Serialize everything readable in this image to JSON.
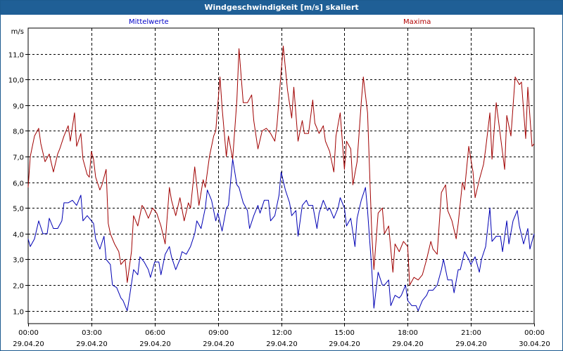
{
  "window": {
    "title": "Windgeschwindigkeit [m/s] skaliert"
  },
  "legend": {
    "mean": "Mittelwerte",
    "max": "Maxima"
  },
  "colors": {
    "mean": "#0000b4",
    "max": "#a00000",
    "titlebar": "#1f5f96",
    "grid": "#000000"
  },
  "chart_data": {
    "type": "line",
    "title": "Windgeschwindigkeit [m/s] skaliert",
    "ylabel": "m/s",
    "xlabel": "",
    "ylim": [
      0.5,
      12.0
    ],
    "yticks": [
      "1,0",
      "2,0",
      "3,0",
      "4,0",
      "5,0",
      "6,0",
      "7,0",
      "8,0",
      "9,0",
      "10,0",
      "11,0"
    ],
    "xlim_hours": [
      0,
      24
    ],
    "xticks": [
      {
        "time": "00:00",
        "date": "29.04.20"
      },
      {
        "time": "03:00",
        "date": "29.04.20"
      },
      {
        "time": "06:00",
        "date": "29.04.20"
      },
      {
        "time": "09:00",
        "date": "29.04.20"
      },
      {
        "time": "12:00",
        "date": "29.04.20"
      },
      {
        "time": "15:00",
        "date": "29.04.20"
      },
      {
        "time": "18:00",
        "date": "29.04.20"
      },
      {
        "time": "21:00",
        "date": "29.04.20"
      },
      {
        "time": "00:00",
        "date": "30.04.20"
      }
    ],
    "grid": true,
    "series": [
      {
        "name": "Mittelwerte",
        "values": [
          [
            0.0,
            3.8
          ],
          [
            0.1,
            3.5
          ],
          [
            0.3,
            3.8
          ],
          [
            0.5,
            4.5
          ],
          [
            0.7,
            4.0
          ],
          [
            0.9,
            4.0
          ],
          [
            1.0,
            4.6
          ],
          [
            1.2,
            4.2
          ],
          [
            1.4,
            4.2
          ],
          [
            1.6,
            4.5
          ],
          [
            1.7,
            5.2
          ],
          [
            1.9,
            5.2
          ],
          [
            2.1,
            5.3
          ],
          [
            2.3,
            5.1
          ],
          [
            2.5,
            5.5
          ],
          [
            2.6,
            4.5
          ],
          [
            2.8,
            4.7
          ],
          [
            3.0,
            4.5
          ],
          [
            3.1,
            4.4
          ],
          [
            3.2,
            3.8
          ],
          [
            3.4,
            3.4
          ],
          [
            3.6,
            3.9
          ],
          [
            3.7,
            3.0
          ],
          [
            3.9,
            2.8
          ],
          [
            4.0,
            2.0
          ],
          [
            4.2,
            1.9
          ],
          [
            4.4,
            1.5
          ],
          [
            4.5,
            1.4
          ],
          [
            4.7,
            1.0
          ],
          [
            4.8,
            1.5
          ],
          [
            5.0,
            2.6
          ],
          [
            5.2,
            2.4
          ],
          [
            5.3,
            3.1
          ],
          [
            5.5,
            2.9
          ],
          [
            5.7,
            2.6
          ],
          [
            5.8,
            2.3
          ],
          [
            6.0,
            2.9
          ],
          [
            6.2,
            2.9
          ],
          [
            6.3,
            2.4
          ],
          [
            6.5,
            3.2
          ],
          [
            6.7,
            3.5
          ],
          [
            6.8,
            3.1
          ],
          [
            7.0,
            2.6
          ],
          [
            7.2,
            3.0
          ],
          [
            7.3,
            3.3
          ],
          [
            7.5,
            3.2
          ],
          [
            7.7,
            3.5
          ],
          [
            7.9,
            4.0
          ],
          [
            8.0,
            4.5
          ],
          [
            8.2,
            4.2
          ],
          [
            8.4,
            5.0
          ],
          [
            8.5,
            5.7
          ],
          [
            8.7,
            5.3
          ],
          [
            8.9,
            4.5
          ],
          [
            9.0,
            4.8
          ],
          [
            9.2,
            4.1
          ],
          [
            9.4,
            5.0
          ],
          [
            9.5,
            5.1
          ],
          [
            9.7,
            6.9
          ],
          [
            9.9,
            5.9
          ],
          [
            10.0,
            5.8
          ],
          [
            10.2,
            5.2
          ],
          [
            10.4,
            4.9
          ],
          [
            10.5,
            4.2
          ],
          [
            10.7,
            4.7
          ],
          [
            10.9,
            5.1
          ],
          [
            11.0,
            4.8
          ],
          [
            11.2,
            5.3
          ],
          [
            11.4,
            5.3
          ],
          [
            11.5,
            4.5
          ],
          [
            11.7,
            4.7
          ],
          [
            11.9,
            5.5
          ],
          [
            12.0,
            6.4
          ],
          [
            12.2,
            5.7
          ],
          [
            12.4,
            5.2
          ],
          [
            12.5,
            4.7
          ],
          [
            12.7,
            4.9
          ],
          [
            12.8,
            3.9
          ],
          [
            13.0,
            5.1
          ],
          [
            13.2,
            5.3
          ],
          [
            13.3,
            5.1
          ],
          [
            13.5,
            5.1
          ],
          [
            13.7,
            4.2
          ],
          [
            13.8,
            4.8
          ],
          [
            14.0,
            5.3
          ],
          [
            14.2,
            4.9
          ],
          [
            14.3,
            5.0
          ],
          [
            14.5,
            4.6
          ],
          [
            14.7,
            5.0
          ],
          [
            14.8,
            5.4
          ],
          [
            15.0,
            5.0
          ],
          [
            15.1,
            4.3
          ],
          [
            15.3,
            4.6
          ],
          [
            15.5,
            3.5
          ],
          [
            15.6,
            4.6
          ],
          [
            15.8,
            5.3
          ],
          [
            16.0,
            5.8
          ],
          [
            16.1,
            4.9
          ],
          [
            16.3,
            2.6
          ],
          [
            16.4,
            1.1
          ],
          [
            16.6,
            2.5
          ],
          [
            16.8,
            2.0
          ],
          [
            16.9,
            2.0
          ],
          [
            17.1,
            2.2
          ],
          [
            17.2,
            1.2
          ],
          [
            17.4,
            1.6
          ],
          [
            17.6,
            1.5
          ],
          [
            17.7,
            1.6
          ],
          [
            17.9,
            2.0
          ],
          [
            18.0,
            1.4
          ],
          [
            18.2,
            1.2
          ],
          [
            18.4,
            1.2
          ],
          [
            18.5,
            1.0
          ],
          [
            18.7,
            1.4
          ],
          [
            18.9,
            1.6
          ],
          [
            19.0,
            1.8
          ],
          [
            19.2,
            1.8
          ],
          [
            19.4,
            2.0
          ],
          [
            19.6,
            2.6
          ],
          [
            19.7,
            3.0
          ],
          [
            19.9,
            2.2
          ],
          [
            20.1,
            2.2
          ],
          [
            20.2,
            1.7
          ],
          [
            20.4,
            2.6
          ],
          [
            20.5,
            2.6
          ],
          [
            20.7,
            3.3
          ],
          [
            20.9,
            3.0
          ],
          [
            21.0,
            2.8
          ],
          [
            21.2,
            3.1
          ],
          [
            21.4,
            2.5
          ],
          [
            21.5,
            3.0
          ],
          [
            21.7,
            3.5
          ],
          [
            21.9,
            5.0
          ],
          [
            22.0,
            3.7
          ],
          [
            22.2,
            3.9
          ],
          [
            22.4,
            3.9
          ],
          [
            22.5,
            3.3
          ],
          [
            22.7,
            4.5
          ],
          [
            22.8,
            3.6
          ],
          [
            23.0,
            4.5
          ],
          [
            23.2,
            4.9
          ],
          [
            23.3,
            4.3
          ],
          [
            23.5,
            3.6
          ],
          [
            23.7,
            4.2
          ],
          [
            23.8,
            3.4
          ],
          [
            24.0,
            4.0
          ]
        ]
      },
      {
        "name": "Maxima",
        "values": [
          [
            0.0,
            5.8
          ],
          [
            0.1,
            7.0
          ],
          [
            0.3,
            7.8
          ],
          [
            0.5,
            8.1
          ],
          [
            0.6,
            7.5
          ],
          [
            0.8,
            6.8
          ],
          [
            1.0,
            7.1
          ],
          [
            1.2,
            6.4
          ],
          [
            1.4,
            7.1
          ],
          [
            1.5,
            7.3
          ],
          [
            1.7,
            7.8
          ],
          [
            1.9,
            8.2
          ],
          [
            2.0,
            7.6
          ],
          [
            2.2,
            8.7
          ],
          [
            2.3,
            7.4
          ],
          [
            2.5,
            7.9
          ],
          [
            2.6,
            6.9
          ],
          [
            2.8,
            6.3
          ],
          [
            2.9,
            6.2
          ],
          [
            3.0,
            7.2
          ],
          [
            3.1,
            6.9
          ],
          [
            3.2,
            6.2
          ],
          [
            3.4,
            5.7
          ],
          [
            3.5,
            5.9
          ],
          [
            3.7,
            6.5
          ],
          [
            3.8,
            4.4
          ],
          [
            3.9,
            4.0
          ],
          [
            4.1,
            3.6
          ],
          [
            4.3,
            3.3
          ],
          [
            4.4,
            2.8
          ],
          [
            4.6,
            3.0
          ],
          [
            4.7,
            2.1
          ],
          [
            4.9,
            3.3
          ],
          [
            5.0,
            4.7
          ],
          [
            5.2,
            4.3
          ],
          [
            5.4,
            5.1
          ],
          [
            5.5,
            5.0
          ],
          [
            5.7,
            4.6
          ],
          [
            5.9,
            5.0
          ],
          [
            6.1,
            4.8
          ],
          [
            6.3,
            4.3
          ],
          [
            6.5,
            3.6
          ],
          [
            6.7,
            5.8
          ],
          [
            6.8,
            5.3
          ],
          [
            7.0,
            4.7
          ],
          [
            7.2,
            5.4
          ],
          [
            7.4,
            4.5
          ],
          [
            7.6,
            5.2
          ],
          [
            7.7,
            5.0
          ],
          [
            7.9,
            6.6
          ],
          [
            8.1,
            5.1
          ],
          [
            8.3,
            6.1
          ],
          [
            8.4,
            5.8
          ],
          [
            8.6,
            7.0
          ],
          [
            8.8,
            7.8
          ],
          [
            8.9,
            8.0
          ],
          [
            9.1,
            10.1
          ],
          [
            9.2,
            8.9
          ],
          [
            9.4,
            7.0
          ],
          [
            9.5,
            7.8
          ],
          [
            9.7,
            6.9
          ],
          [
            9.9,
            9.2
          ],
          [
            10.0,
            11.2
          ],
          [
            10.2,
            9.1
          ],
          [
            10.4,
            9.1
          ],
          [
            10.6,
            9.4
          ],
          [
            10.7,
            8.4
          ],
          [
            10.9,
            7.3
          ],
          [
            11.1,
            8.0
          ],
          [
            11.3,
            8.1
          ],
          [
            11.5,
            7.9
          ],
          [
            11.7,
            7.6
          ],
          [
            11.8,
            8.2
          ],
          [
            12.0,
            10.3
          ],
          [
            12.1,
            11.3
          ],
          [
            12.3,
            9.6
          ],
          [
            12.5,
            8.5
          ],
          [
            12.6,
            9.7
          ],
          [
            12.8,
            7.6
          ],
          [
            13.0,
            8.4
          ],
          [
            13.1,
            7.9
          ],
          [
            13.3,
            7.9
          ],
          [
            13.5,
            9.2
          ],
          [
            13.6,
            8.3
          ],
          [
            13.8,
            7.9
          ],
          [
            14.0,
            8.2
          ],
          [
            14.1,
            7.6
          ],
          [
            14.3,
            7.2
          ],
          [
            14.5,
            6.4
          ],
          [
            14.6,
            7.8
          ],
          [
            14.8,
            8.7
          ],
          [
            15.0,
            6.5
          ],
          [
            15.1,
            7.6
          ],
          [
            15.3,
            7.3
          ],
          [
            15.4,
            5.9
          ],
          [
            15.6,
            6.8
          ],
          [
            15.8,
            9.1
          ],
          [
            15.9,
            10.1
          ],
          [
            16.1,
            8.7
          ],
          [
            16.3,
            4.0
          ],
          [
            16.4,
            2.6
          ],
          [
            16.6,
            4.8
          ],
          [
            16.8,
            5.0
          ],
          [
            16.9,
            4.0
          ],
          [
            17.1,
            4.3
          ],
          [
            17.3,
            2.5
          ],
          [
            17.4,
            3.6
          ],
          [
            17.6,
            3.3
          ],
          [
            17.8,
            3.7
          ],
          [
            18.0,
            3.5
          ],
          [
            18.1,
            2.0
          ],
          [
            18.3,
            2.3
          ],
          [
            18.5,
            2.2
          ],
          [
            18.7,
            2.4
          ],
          [
            18.9,
            3.0
          ],
          [
            19.1,
            3.7
          ],
          [
            19.2,
            3.4
          ],
          [
            19.4,
            3.2
          ],
          [
            19.6,
            5.6
          ],
          [
            19.8,
            5.9
          ],
          [
            19.9,
            4.9
          ],
          [
            20.1,
            4.5
          ],
          [
            20.3,
            3.8
          ],
          [
            20.4,
            4.4
          ],
          [
            20.6,
            6.0
          ],
          [
            20.7,
            5.7
          ],
          [
            20.9,
            7.4
          ],
          [
            21.1,
            6.4
          ],
          [
            21.2,
            5.4
          ],
          [
            21.4,
            6.1
          ],
          [
            21.6,
            6.7
          ],
          [
            21.7,
            7.3
          ],
          [
            21.9,
            8.7
          ],
          [
            22.0,
            6.9
          ],
          [
            22.2,
            9.1
          ],
          [
            22.4,
            7.8
          ],
          [
            22.6,
            6.5
          ],
          [
            22.7,
            8.6
          ],
          [
            22.9,
            7.8
          ],
          [
            23.1,
            10.1
          ],
          [
            23.3,
            9.8
          ],
          [
            23.4,
            9.9
          ],
          [
            23.6,
            7.7
          ],
          [
            23.7,
            9.7
          ],
          [
            23.9,
            7.4
          ],
          [
            24.0,
            7.5
          ]
        ]
      }
    ]
  }
}
